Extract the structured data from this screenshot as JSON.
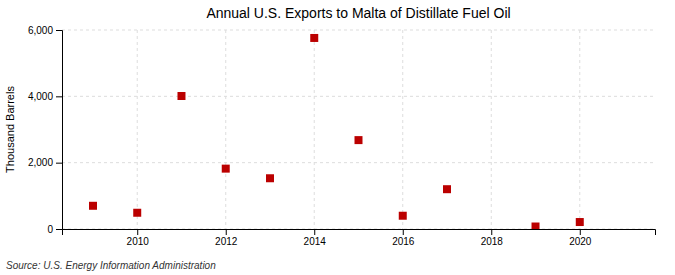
{
  "chart_data": {
    "type": "scatter",
    "title": "Annual U.S. Exports to Malta of Distillate Fuel Oil",
    "ylabel": "Thousand Barrels",
    "annotations": [
      "Source: U.S. Energy Information Administration"
    ],
    "x": [
      2009,
      2010,
      2011,
      2012,
      2013,
      2014,
      2015,
      2016,
      2017,
      2019,
      2020
    ],
    "values": [
      700,
      490,
      4010,
      1820,
      1530,
      5760,
      2680,
      400,
      1200,
      75,
      210
    ],
    "color": "#bb0000",
    "marker": "square",
    "xlim": [
      2008.3,
      2021.7
    ],
    "xticks": [
      2010,
      2012,
      2014,
      2016,
      2018,
      2020
    ],
    "ylim": [
      0,
      6000
    ],
    "yticks": [
      0,
      {
        "value": 2000,
        "label": "2,000"
      },
      {
        "value": 4000,
        "label": "4,000"
      },
      {
        "value": 6000,
        "label": "6,000"
      }
    ],
    "grid": true
  }
}
